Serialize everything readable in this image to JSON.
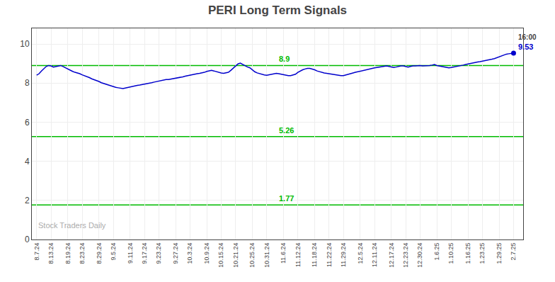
{
  "chart_data": {
    "type": "line",
    "title": "PERI Long Term Signals",
    "color": "#0000cc",
    "grid": true,
    "xlim": [
      -2,
      203
    ],
    "ylim": [
      0,
      10.8
    ],
    "yticks": [
      0,
      2,
      4,
      6,
      8,
      10
    ],
    "hlines": [
      {
        "y": 8.9,
        "color": "#00bb00"
      },
      {
        "y": 5.26,
        "color": "#00bb00"
      },
      {
        "y": 1.77,
        "color": "#00bb00"
      }
    ],
    "last_point_label": "16:00",
    "last_value_label": "9.53",
    "watermark": "Stock Traders Daily",
    "categories": [
      "8.7.24",
      null,
      null,
      null,
      null,
      null,
      "8.13.24",
      null,
      null,
      null,
      null,
      null,
      null,
      "8.19.24",
      null,
      null,
      null,
      null,
      null,
      "8.23.24",
      null,
      null,
      null,
      null,
      null,
      null,
      "8.29.24",
      null,
      null,
      null,
      null,
      null,
      "9.5.24",
      null,
      null,
      null,
      null,
      null,
      null,
      "9.11.24",
      null,
      null,
      null,
      null,
      null,
      "9.17.24",
      null,
      null,
      null,
      null,
      null,
      "9.23.24",
      null,
      null,
      null,
      null,
      null,
      null,
      "9.27.24",
      null,
      null,
      null,
      null,
      null,
      "10.3.24",
      null,
      null,
      null,
      null,
      null,
      null,
      "10.9.24",
      null,
      null,
      null,
      null,
      null,
      "10.15.24",
      null,
      null,
      null,
      null,
      null,
      "10.21.24",
      null,
      null,
      null,
      null,
      null,
      null,
      "10.25.24",
      null,
      null,
      null,
      null,
      null,
      "10.31.24",
      null,
      null,
      null,
      null,
      null,
      null,
      "11.6.24",
      null,
      null,
      null,
      null,
      null,
      "11.12.24",
      null,
      null,
      null,
      null,
      null,
      null,
      "11.18.24",
      null,
      null,
      null,
      null,
      null,
      "11.22.24",
      null,
      null,
      null,
      null,
      null,
      "11.29.24",
      null,
      null,
      null,
      null,
      null,
      null,
      "12.5.24",
      null,
      null,
      null,
      null,
      null,
      "12.11.24",
      null,
      null,
      null,
      null,
      null,
      null,
      "12.17.24",
      null,
      null,
      null,
      null,
      null,
      "12.23.24",
      null,
      null,
      null,
      null,
      null,
      "12.30.24",
      null,
      null,
      null,
      null,
      null,
      null,
      "1.6.25",
      null,
      null,
      null,
      null,
      null,
      "1.10.25",
      null,
      null,
      null,
      null,
      null,
      null,
      "1.16.25",
      null,
      null,
      null,
      null,
      null,
      "1.23.25",
      null,
      null,
      null,
      null,
      null,
      null,
      "1.29.25",
      null,
      null,
      null,
      null,
      null,
      "2.7.25"
    ],
    "values": [
      8.4,
      8.48,
      8.62,
      8.72,
      8.85,
      8.9,
      8.88,
      8.82,
      8.85,
      8.88,
      8.9,
      8.85,
      8.78,
      8.72,
      8.65,
      8.6,
      8.55,
      8.52,
      8.48,
      8.42,
      8.38,
      8.32,
      8.28,
      8.22,
      8.18,
      8.12,
      8.08,
      8.02,
      7.98,
      7.92,
      7.88,
      7.84,
      7.8,
      7.78,
      7.76,
      7.74,
      7.72,
      7.75,
      7.78,
      7.8,
      7.82,
      7.85,
      7.88,
      7.9,
      7.92,
      7.95,
      7.98,
      8.0,
      8.02,
      8.05,
      8.08,
      8.1,
      8.12,
      8.15,
      8.18,
      8.18,
      8.2,
      8.22,
      8.25,
      8.28,
      8.3,
      8.32,
      8.35,
      8.38,
      8.4,
      8.42,
      8.45,
      8.48,
      8.5,
      8.52,
      8.55,
      8.6,
      8.62,
      8.65,
      8.62,
      8.58,
      8.55,
      8.52,
      8.5,
      8.52,
      8.55,
      8.65,
      8.75,
      8.88,
      8.98,
      9.02,
      8.95,
      8.88,
      8.82,
      8.78,
      8.68,
      8.58,
      8.52,
      8.48,
      8.45,
      8.42,
      8.4,
      8.42,
      8.45,
      8.48,
      8.5,
      8.48,
      8.45,
      8.42,
      8.4,
      8.38,
      8.38,
      8.42,
      8.45,
      8.55,
      8.62,
      8.68,
      8.72,
      8.75,
      8.75,
      8.72,
      8.68,
      8.62,
      8.58,
      8.55,
      8.52,
      8.5,
      8.48,
      8.45,
      8.45,
      8.42,
      8.4,
      8.38,
      8.38,
      8.42,
      8.45,
      8.48,
      8.52,
      8.55,
      8.58,
      8.62,
      8.65,
      8.68,
      8.7,
      8.72,
      8.75,
      8.78,
      8.8,
      8.82,
      8.85,
      8.88,
      8.88,
      8.85,
      8.82,
      8.8,
      8.82,
      8.85,
      8.88,
      8.88,
      8.85,
      8.82,
      8.85,
      8.88,
      8.88,
      8.9,
      8.9,
      8.88,
      8.88,
      8.9,
      8.9,
      8.92,
      8.95,
      8.9,
      8.88,
      8.85,
      8.82,
      8.8,
      8.78,
      8.8,
      8.82,
      8.85,
      8.88,
      8.9,
      8.92,
      8.95,
      8.98,
      9.0,
      9.02,
      9.05,
      9.08,
      9.1,
      9.12,
      9.15,
      9.18,
      9.2,
      9.22,
      9.25,
      9.3,
      9.35,
      9.4,
      9.45,
      9.48,
      9.5,
      9.52,
      9.53
    ]
  }
}
